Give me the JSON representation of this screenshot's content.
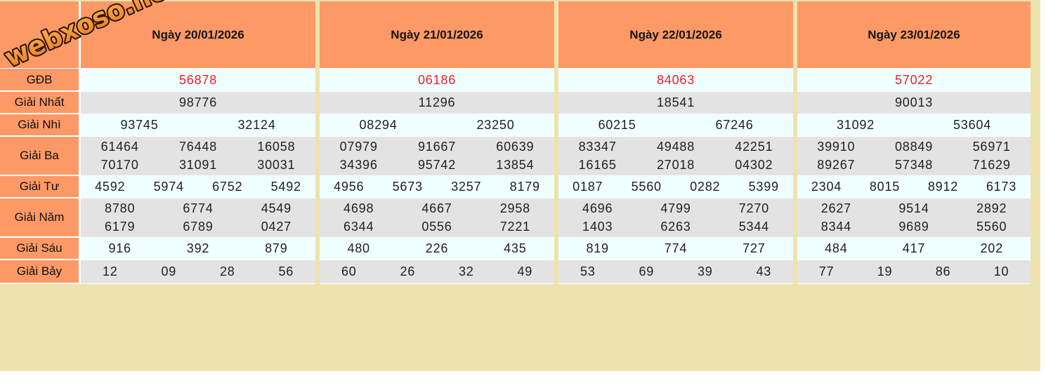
{
  "logo": "webxoso.net",
  "colors": {
    "header_orange": "#fc9966",
    "page_khaki": "#ede3ae",
    "row_azure": "#f0ffff",
    "row_gray": "#e3e3e3",
    "special_red": "#ef1e26",
    "text": "#1f1f1f"
  },
  "table": {
    "row_labels": [
      "GĐB",
      "Giải Nhất",
      "Giải Nhì",
      "Giải Ba",
      "Giải Tư",
      "Giải Năm",
      "Giải Sáu",
      "Giải Bảy"
    ],
    "columns": [
      {
        "date": "Ngày 20/01/2026",
        "gdb": "56878",
        "nhat": "98776",
        "nhi": [
          "93745",
          "32124"
        ],
        "ba": [
          [
            "61464",
            "76448",
            "16058"
          ],
          [
            "70170",
            "31091",
            "30031"
          ]
        ],
        "tu": [
          "4592",
          "5974",
          "6752",
          "5492"
        ],
        "nam": [
          [
            "8780",
            "6774",
            "4549"
          ],
          [
            "6179",
            "6789",
            "0427"
          ]
        ],
        "sau": [
          "916",
          "392",
          "879"
        ],
        "bay": [
          "12",
          "09",
          "28",
          "56"
        ]
      },
      {
        "date": "Ngày 21/01/2026",
        "gdb": "06186",
        "nhat": "11296",
        "nhi": [
          "08294",
          "23250"
        ],
        "ba": [
          [
            "07979",
            "91667",
            "60639"
          ],
          [
            "34396",
            "95742",
            "13854"
          ]
        ],
        "tu": [
          "4956",
          "5673",
          "3257",
          "8179"
        ],
        "nam": [
          [
            "4698",
            "4667",
            "2958"
          ],
          [
            "6344",
            "0556",
            "7221"
          ]
        ],
        "sau": [
          "480",
          "226",
          "435"
        ],
        "bay": [
          "60",
          "26",
          "32",
          "49"
        ]
      },
      {
        "date": "Ngày 22/01/2026",
        "gdb": "84063",
        "nhat": "18541",
        "nhi": [
          "60215",
          "67246"
        ],
        "ba": [
          [
            "83347",
            "49488",
            "42251"
          ],
          [
            "16165",
            "27018",
            "04302"
          ]
        ],
        "tu": [
          "0187",
          "5560",
          "0282",
          "5399"
        ],
        "nam": [
          [
            "4696",
            "4799",
            "7270"
          ],
          [
            "1403",
            "6263",
            "5344"
          ]
        ],
        "sau": [
          "819",
          "774",
          "727"
        ],
        "bay": [
          "53",
          "69",
          "39",
          "43"
        ]
      },
      {
        "date": "Ngày 23/01/2026",
        "gdb": "57022",
        "nhat": "90013",
        "nhi": [
          "31092",
          "53604"
        ],
        "ba": [
          [
            "39910",
            "08849",
            "56971"
          ],
          [
            "89267",
            "57348",
            "71629"
          ]
        ],
        "tu": [
          "2304",
          "8015",
          "8912",
          "6173"
        ],
        "nam": [
          [
            "2627",
            "9514",
            "2892"
          ],
          [
            "8344",
            "9689",
            "5560"
          ]
        ],
        "sau": [
          "484",
          "417",
          "202"
        ],
        "bay": [
          "77",
          "19",
          "86",
          "10"
        ]
      }
    ]
  }
}
